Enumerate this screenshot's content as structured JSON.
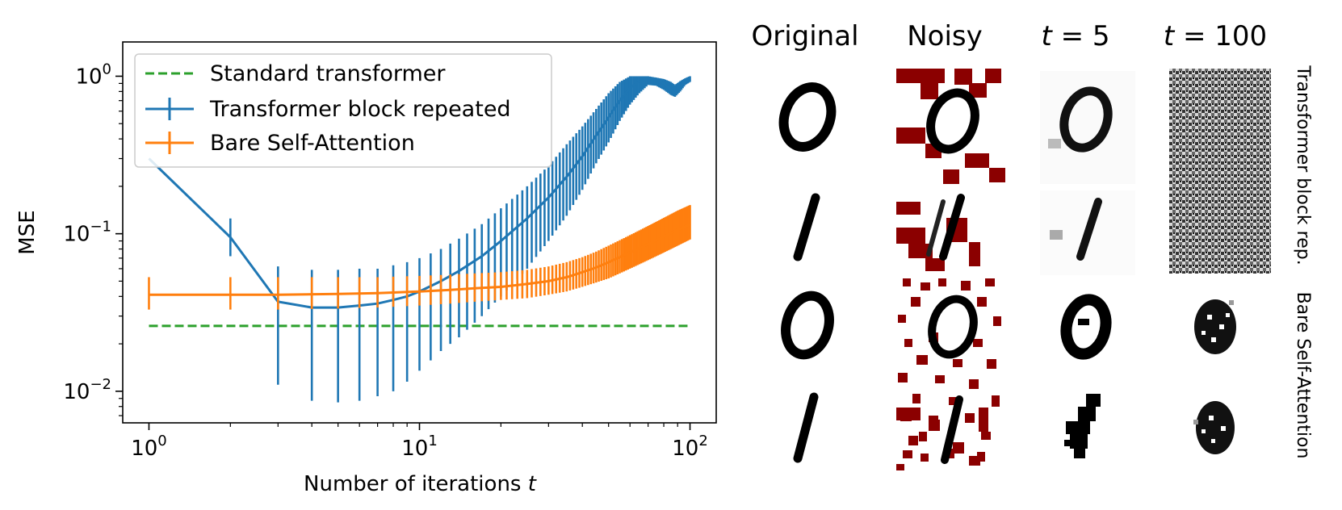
{
  "chart_data": {
    "type": "line",
    "xlabel": "Number of iterations",
    "xlabel_var": "t",
    "ylabel": "MSE",
    "xscale": "log",
    "yscale": "log",
    "xlim": [
      0.8,
      125
    ],
    "ylim": [
      0.0063,
      1.65
    ],
    "x_ticks": [
      {
        "value": 1,
        "label": "10",
        "exp": "0"
      },
      {
        "value": 10,
        "label": "10",
        "exp": "1"
      },
      {
        "value": 100,
        "label": "10",
        "exp": "2"
      }
    ],
    "y_ticks": [
      {
        "value": 0.01,
        "label": "10",
        "exp": "−2"
      },
      {
        "value": 0.1,
        "label": "10",
        "exp": "−1"
      },
      {
        "value": 1,
        "label": "10",
        "exp": "0"
      }
    ],
    "legend_position": "upper-left",
    "grid": false,
    "series": [
      {
        "name": "Standard transformer",
        "color": "#2ca02c",
        "style": "dashed",
        "x": [
          1,
          100
        ],
        "y": [
          0.026,
          0.026
        ]
      },
      {
        "name": "Transformer block repeated",
        "color": "#1f77b4",
        "style": "solid-errorbar",
        "points": [
          [
            1,
            0.3,
            0.3,
            0.3
          ],
          [
            2,
            0.095,
            0.072,
            0.125
          ],
          [
            3,
            0.037,
            0.011,
            0.062
          ],
          [
            4,
            0.034,
            0.0087,
            0.059
          ],
          [
            5,
            0.034,
            0.0085,
            0.059
          ],
          [
            6,
            0.035,
            0.0087,
            0.06
          ],
          [
            7,
            0.036,
            0.0093,
            0.06
          ],
          [
            8,
            0.038,
            0.01,
            0.063
          ],
          [
            9,
            0.04,
            0.0115,
            0.066
          ],
          [
            10,
            0.043,
            0.0135,
            0.07
          ],
          [
            12,
            0.05,
            0.018,
            0.08
          ],
          [
            14,
            0.058,
            0.022,
            0.093
          ],
          [
            17,
            0.072,
            0.03,
            0.115
          ],
          [
            20,
            0.09,
            0.04,
            0.145
          ],
          [
            25,
            0.125,
            0.06,
            0.2
          ],
          [
            30,
            0.17,
            0.09,
            0.27
          ],
          [
            35,
            0.23,
            0.13,
            0.37
          ],
          [
            40,
            0.31,
            0.19,
            0.48
          ],
          [
            45,
            0.42,
            0.28,
            0.62
          ],
          [
            50,
            0.55,
            0.38,
            0.78
          ],
          [
            55,
            0.7,
            0.52,
            0.92
          ],
          [
            60,
            0.84,
            0.66,
            1.0
          ],
          [
            65,
            0.93,
            0.78,
            1.0
          ],
          [
            70,
            0.97,
            0.88,
            1.0
          ],
          [
            75,
            0.96,
            0.87,
            0.98
          ],
          [
            80,
            0.9,
            0.82,
            0.96
          ],
          [
            85,
            0.82,
            0.76,
            0.92
          ],
          [
            88,
            0.78,
            0.74,
            0.88
          ],
          [
            92,
            0.84,
            0.8,
            0.93
          ],
          [
            96,
            0.92,
            0.88,
            0.97
          ],
          [
            100,
            0.95,
            0.92,
            1.0
          ]
        ]
      },
      {
        "name": "Bare Self-Attention",
        "color": "#ff7f0e",
        "style": "solid-errorbar",
        "points": [
          [
            1,
            0.041,
            0.033,
            0.053
          ],
          [
            2,
            0.041,
            0.033,
            0.053
          ],
          [
            3,
            0.041,
            0.033,
            0.053
          ],
          [
            5,
            0.0415,
            0.0335,
            0.053
          ],
          [
            7,
            0.042,
            0.034,
            0.053
          ],
          [
            10,
            0.043,
            0.035,
            0.054
          ],
          [
            13,
            0.044,
            0.036,
            0.055
          ],
          [
            16,
            0.045,
            0.037,
            0.056
          ],
          [
            20,
            0.046,
            0.038,
            0.057
          ],
          [
            25,
            0.048,
            0.039,
            0.059
          ],
          [
            30,
            0.05,
            0.041,
            0.062
          ],
          [
            35,
            0.053,
            0.043,
            0.066
          ],
          [
            40,
            0.057,
            0.046,
            0.071
          ],
          [
            45,
            0.061,
            0.049,
            0.077
          ],
          [
            50,
            0.066,
            0.052,
            0.084
          ],
          [
            55,
            0.071,
            0.056,
            0.091
          ],
          [
            60,
            0.076,
            0.06,
            0.098
          ],
          [
            65,
            0.081,
            0.064,
            0.105
          ],
          [
            70,
            0.086,
            0.068,
            0.112
          ],
          [
            75,
            0.091,
            0.072,
            0.119
          ],
          [
            80,
            0.096,
            0.076,
            0.126
          ],
          [
            85,
            0.101,
            0.08,
            0.133
          ],
          [
            90,
            0.106,
            0.084,
            0.14
          ],
          [
            95,
            0.11,
            0.088,
            0.146
          ],
          [
            100,
            0.115,
            0.092,
            0.152
          ]
        ]
      }
    ]
  },
  "image_panel": {
    "column_titles": [
      {
        "text": "Original",
        "math": false
      },
      {
        "text": "Noisy",
        "math": false
      },
      {
        "var": "t",
        "eq": " = ",
        "num": "5",
        "math": true
      },
      {
        "var": "t",
        "eq": " = ",
        "num": "100",
        "math": true
      }
    ],
    "row_labels": [
      "Transformer block rep.",
      "Bare Self-Attention"
    ],
    "noise_color": "#8b0000",
    "digits": [
      "0",
      "1",
      "0",
      "1"
    ]
  }
}
